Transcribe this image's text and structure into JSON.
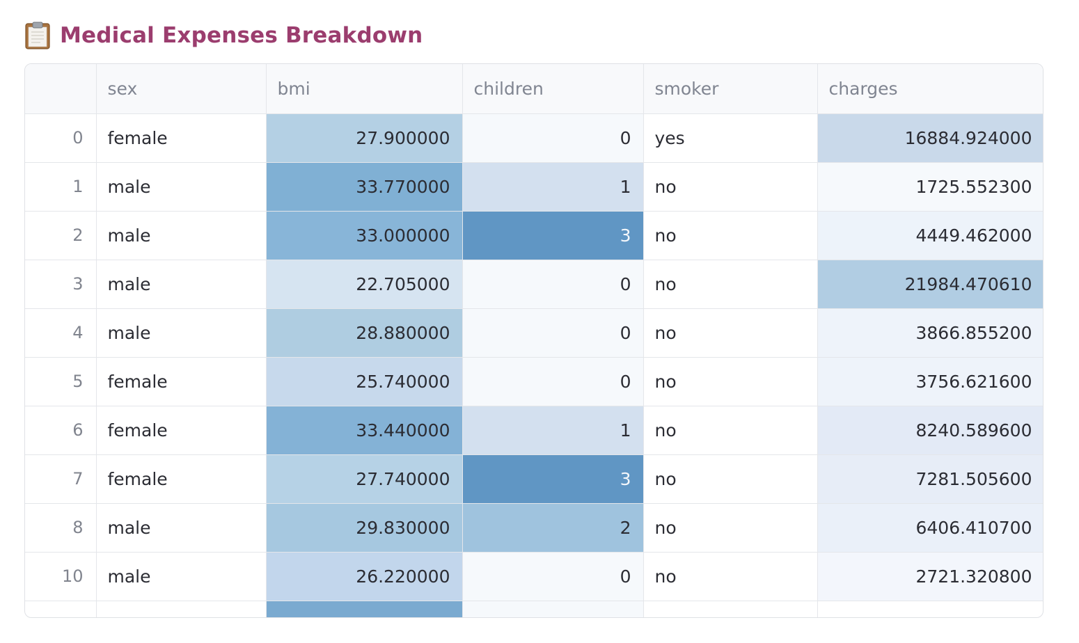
{
  "title": {
    "icon": "clipboard-icon",
    "text": "Medical Expenses Breakdown",
    "color": "#9b3d6e"
  },
  "table": {
    "columns": [
      "",
      "sex",
      "bmi",
      "children",
      "smoker",
      "charges"
    ],
    "rows": [
      {
        "index": "0",
        "sex": "female",
        "bmi": "27.900000",
        "children": "0",
        "smoker": "yes",
        "charges": "16884.924000"
      },
      {
        "index": "1",
        "sex": "male",
        "bmi": "33.770000",
        "children": "1",
        "smoker": "no",
        "charges": "1725.552300"
      },
      {
        "index": "2",
        "sex": "male",
        "bmi": "33.000000",
        "children": "3",
        "smoker": "no",
        "charges": "4449.462000"
      },
      {
        "index": "3",
        "sex": "male",
        "bmi": "22.705000",
        "children": "0",
        "smoker": "no",
        "charges": "21984.470610"
      },
      {
        "index": "4",
        "sex": "male",
        "bmi": "28.880000",
        "children": "0",
        "smoker": "no",
        "charges": "3866.855200"
      },
      {
        "index": "5",
        "sex": "female",
        "bmi": "25.740000",
        "children": "0",
        "smoker": "no",
        "charges": "3756.621600"
      },
      {
        "index": "6",
        "sex": "female",
        "bmi": "33.440000",
        "children": "1",
        "smoker": "no",
        "charges": "8240.589600"
      },
      {
        "index": "7",
        "sex": "female",
        "bmi": "27.740000",
        "children": "3",
        "smoker": "no",
        "charges": "7281.505600"
      },
      {
        "index": "8",
        "sex": "male",
        "bmi": "29.830000",
        "children": "2",
        "smoker": "no",
        "charges": "6406.410700"
      },
      {
        "index": "10",
        "sex": "male",
        "bmi": "26.220000",
        "children": "0",
        "smoker": "no",
        "charges": "2721.320800"
      }
    ],
    "partial_row_colors": {
      "bmi": "#7aaad0",
      "children": "#f6f9fc"
    },
    "cell_colors": [
      {
        "bmi": "#b4d0e4",
        "children": "#f6f9fc",
        "charges": "#c9d9ea"
      },
      {
        "bmi": "#80b0d4",
        "children": "#d3e0ef",
        "charges": "#f6f9fc"
      },
      {
        "bmi": "#88b5d8",
        "children": "#6096c4",
        "charges": "#edf3fa"
      },
      {
        "bmi": "#d6e4f1",
        "children": "#f6f9fc",
        "charges": "#b1cde3"
      },
      {
        "bmi": "#afcde1",
        "children": "#f6f9fc",
        "charges": "#eef3fa"
      },
      {
        "bmi": "#c7d9ec",
        "children": "#f6f9fc",
        "charges": "#eef3fa"
      },
      {
        "bmi": "#84b2d6",
        "children": "#d3e0ef",
        "charges": "#e3eaf6"
      },
      {
        "bmi": "#b6d2e6",
        "children": "#6096c4",
        "charges": "#e7edf7"
      },
      {
        "bmi": "#a6c8e0",
        "children": "#9fc3de",
        "charges": "#eaf0f9"
      },
      {
        "bmi": "#c2d6ec",
        "children": "#f6f9fc",
        "charges": "#f3f6fc"
      }
    ]
  }
}
